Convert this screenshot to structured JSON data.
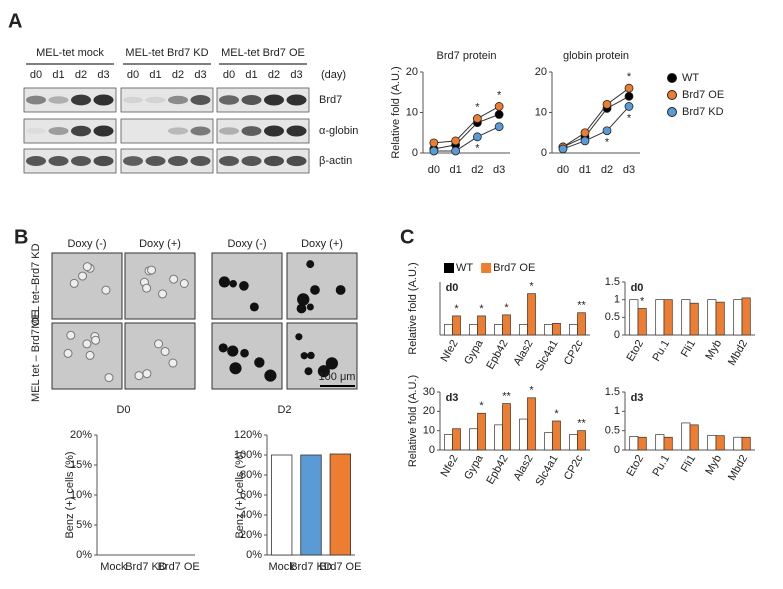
{
  "panels": [
    "A",
    "B",
    "C"
  ],
  "blot": {
    "groups": [
      "MEL-tet  mock",
      "MEL-tet  Brd7 KD",
      "MEL-tet  Brd7 OE"
    ],
    "days": [
      "d0",
      "d1",
      "d2",
      "d3"
    ],
    "unit": "(day)",
    "rows": [
      "Brd7",
      "α-globin",
      "β-actin"
    ]
  },
  "micrographs": {
    "columns": [
      "Doxy (-)",
      "Doxy (+)"
    ],
    "rows": [
      "MEL tet–Brd7 KD",
      "MEL tet – Brd7 OE"
    ],
    "timepoints": [
      "D0",
      "D2"
    ],
    "scale": "100 μm"
  },
  "chart_data": [
    {
      "type": "line",
      "title": "Brd7 protein",
      "y_label": "Relative fold (A.U.)",
      "categories": [
        "d0",
        "d1",
        "d2",
        "d3"
      ],
      "ylim": [
        0,
        20
      ],
      "yticks": [
        0,
        10,
        20
      ],
      "series": [
        {
          "name": "WT",
          "color": "#000000",
          "values": [
            1,
            2,
            7.5,
            9.5
          ],
          "marks": [
            null,
            null,
            null,
            null
          ]
        },
        {
          "name": "Brd7 OE",
          "color": "#ed7d31",
          "values": [
            2.5,
            3,
            8.5,
            11.5
          ],
          "marks": [
            null,
            null,
            "*",
            "*"
          ]
        },
        {
          "name": "Brd7 KD",
          "color": "#5b9bd5",
          "values": [
            0.5,
            0.5,
            4,
            6.5
          ],
          "marks": [
            null,
            null,
            "*",
            null
          ]
        }
      ]
    },
    {
      "type": "line",
      "title": "globin protein",
      "legend": "right",
      "categories": [
        "d0",
        "d1",
        "d2",
        "d3"
      ],
      "ylim": [
        0,
        20
      ],
      "yticks": [
        0,
        10,
        20
      ],
      "series": [
        {
          "name": "WT",
          "color": "#000000",
          "values": [
            1.5,
            4,
            11,
            14
          ],
          "marks": [
            null,
            null,
            null,
            null
          ]
        },
        {
          "name": "Brd7 OE",
          "color": "#ed7d31",
          "values": [
            1.5,
            5,
            12,
            16
          ],
          "marks": [
            null,
            null,
            null,
            "*"
          ]
        },
        {
          "name": "Brd7 KD",
          "color": "#5b9bd5",
          "values": [
            1,
            3,
            5.5,
            11.5
          ],
          "marks": [
            null,
            null,
            "*",
            "*"
          ]
        }
      ]
    },
    {
      "type": "bar",
      "y_label": "Benz (+) cells (%)",
      "categories": [
        "Mock",
        "Brd7 KD",
        "Brd7 OE"
      ],
      "values": [
        0,
        0,
        0
      ],
      "colors": [
        "#ffffff",
        "#5b9bd5",
        "#ed7d31"
      ],
      "ylim": [
        0,
        20
      ],
      "yticks": [
        {
          "value": 0,
          "label": "0%"
        },
        {
          "value": 5,
          "label": "5%"
        },
        {
          "value": 10,
          "label": "10%"
        },
        {
          "value": 15,
          "label": "15%"
        },
        {
          "value": 20,
          "label": "20%"
        }
      ]
    },
    {
      "type": "bar",
      "y_label": "Benz (+) cells (%)",
      "categories": [
        "Mock",
        "Brd7 KD",
        "Brd7 OE"
      ],
      "values": [
        100,
        100,
        101
      ],
      "colors": [
        "#ffffff",
        "#5b9bd5",
        "#ed7d31"
      ],
      "ylim": [
        0,
        120
      ],
      "yticks": [
        {
          "value": 0,
          "label": "0%"
        },
        {
          "value": 20,
          "label": "20%"
        },
        {
          "value": 40,
          "label": "40%"
        },
        {
          "value": 60,
          "label": "60%"
        },
        {
          "value": 80,
          "label": "80%"
        },
        {
          "value": 100,
          "label": "100%"
        },
        {
          "value": 120,
          "label": "120%"
        }
      ]
    },
    {
      "type": "bar",
      "label": "d0",
      "legend": "top",
      "y_label": "Relative fold (A.U.)",
      "categories": [
        "Nfe2",
        "Gypa",
        "Epb42",
        "Alas2",
        "Slc4a1",
        "CP2c"
      ],
      "ylim": [
        0,
        5
      ],
      "series": [
        {
          "name": "WT",
          "color": "#ffffff",
          "values": [
            1,
            1,
            1,
            1,
            1,
            1
          ],
          "marks": [
            null,
            null,
            null,
            null,
            null,
            null
          ]
        },
        {
          "name": "Brd7 OE",
          "color": "#ed7d31",
          "values": [
            1.8,
            1.8,
            1.9,
            3.9,
            1.1,
            2.1
          ],
          "marks": [
            "*",
            "*",
            "*",
            "*",
            null,
            "**"
          ]
        }
      ]
    },
    {
      "type": "bar",
      "label": "d0",
      "categories": [
        "Eto2",
        "Pu.1",
        "Fli1",
        "Myb",
        "Mbd2"
      ],
      "ylim": [
        0,
        1.5
      ],
      "yticks": [
        0,
        0.5,
        1,
        1.5
      ],
      "series": [
        {
          "color": "#ffffff",
          "values": [
            1,
            1,
            1,
            1,
            1
          ],
          "marks": [
            null,
            null,
            null,
            null,
            null
          ]
        },
        {
          "color": "#ed7d31",
          "values": [
            0.75,
            1,
            0.9,
            0.93,
            1.05
          ],
          "marks": [
            "*",
            null,
            null,
            null,
            null
          ]
        }
      ]
    },
    {
      "type": "bar",
      "label": "d3",
      "y_label": "Relative fold (A.U.)",
      "categories": [
        "Nfe2",
        "Gypa",
        "Epb42",
        "Alas2",
        "Slc4a1",
        "CP2c"
      ],
      "ylim": [
        0,
        30
      ],
      "yticks": [
        0,
        10,
        20,
        30
      ],
      "series": [
        {
          "color": "#ffffff",
          "values": [
            8,
            11,
            13,
            16,
            9,
            8
          ],
          "marks": [
            null,
            null,
            null,
            null,
            null,
            null
          ]
        },
        {
          "color": "#ed7d31",
          "values": [
            11,
            19,
            24,
            27,
            15,
            10
          ],
          "marks": [
            null,
            "*",
            "**",
            "*",
            "*",
            "**"
          ]
        }
      ]
    },
    {
      "type": "bar",
      "label": "d3",
      "categories": [
        "Eto2",
        "Pu.1",
        "Fli1",
        "Myb",
        "Mbd2"
      ],
      "ylim": [
        0,
        1.5
      ],
      "yticks": [
        0,
        0.5,
        1,
        1.5
      ],
      "series": [
        {
          "color": "#ffffff",
          "values": [
            0.35,
            0.4,
            0.7,
            0.38,
            0.33
          ],
          "marks": [
            null,
            null,
            null,
            null,
            null
          ]
        },
        {
          "color": "#ed7d31",
          "values": [
            0.33,
            0.33,
            0.65,
            0.37,
            0.33
          ],
          "marks": [
            null,
            null,
            null,
            null,
            null
          ]
        }
      ]
    }
  ]
}
